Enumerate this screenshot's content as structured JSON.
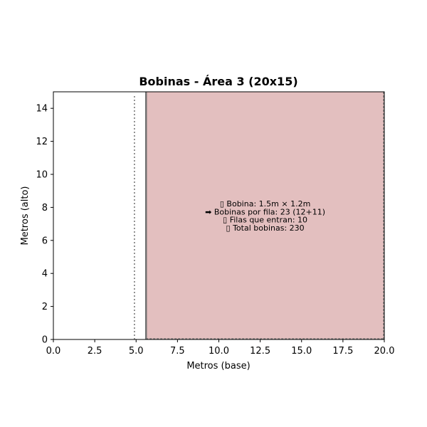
{
  "chart_data": {
    "type": "area",
    "title": "Bobinas - Área 3 (20x15)",
    "xlabel": "Metros (base)",
    "ylabel": "Metros (alto)",
    "xlim": [
      0,
      20
    ],
    "ylim": [
      0,
      15
    ],
    "x_ticks": [
      "0.0",
      "2.5",
      "5.0",
      "7.5",
      "10.0",
      "12.5",
      "15.0",
      "17.5",
      "20.0"
    ],
    "y_ticks": [
      "0",
      "2",
      "4",
      "6",
      "8",
      "10",
      "12",
      "14"
    ],
    "grid": false,
    "filled_region": {
      "x_start": 5.6,
      "x_end": 20,
      "y_start": 0,
      "y_end": 15,
      "color": "#e3bfbf"
    },
    "region_border_color": "#707070",
    "dotted_line": {
      "x": 4.9,
      "y_start": 0,
      "y_end": 14.8,
      "color": "#707070"
    },
    "annotation": {
      "x": 12.8,
      "y": 7.5,
      "lines": [
        "▯ Bobina: 1.5m × 1.2m",
        "➡ Bobinas por fila: 23 (12+11)",
        "▯ Filas que entran: 10",
        "▯ Total bobinas: 230"
      ]
    }
  }
}
